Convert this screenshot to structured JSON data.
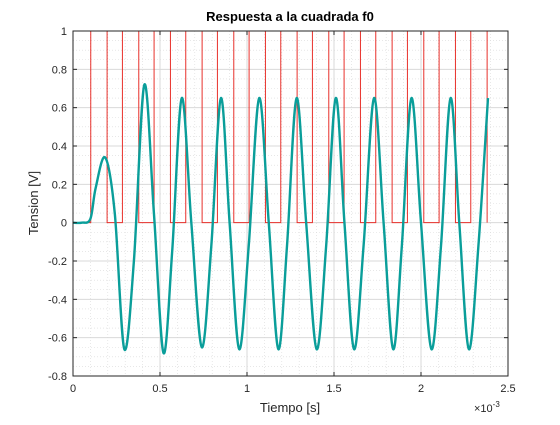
{
  "chart_data": {
    "type": "line",
    "title": "Respuesta a la cuadrada f0",
    "xlabel": "Tiempo [s]",
    "ylabel": "Tension [V]",
    "x_exponent_label": "×10",
    "x_exponent_power": "-3",
    "xlim": [
      0,
      0.0025
    ],
    "ylim": [
      -0.8,
      1
    ],
    "grid": true,
    "minor_grid": true,
    "x_ticks": [
      0,
      0.0005,
      0.001,
      0.0015,
      0.002,
      0.0025
    ],
    "x_tick_labels": [
      "0",
      "0.5",
      "1",
      "1.5",
      "2",
      "2.5"
    ],
    "y_ticks": [
      -0.8,
      -0.6,
      -0.4,
      -0.2,
      0,
      0.2,
      0.4,
      0.6,
      0.8,
      1
    ],
    "y_tick_labels": [
      "-0.8",
      "-0.6",
      "-0.4",
      "-0.2",
      "0",
      "0.2",
      "0.4",
      "0.6",
      "0.8",
      "1"
    ],
    "colors": {
      "square": "#e8312b",
      "response": "#0a9e9a",
      "grid": "#d9d9d9",
      "axis": "#262626"
    },
    "series": [
      {
        "role": "square",
        "style": "step",
        "x": [
          0,
          0.000102,
          0.000102,
          0.000196,
          0.000196,
          0.000284,
          0.000284,
          0.000378,
          0.000378,
          0.000466,
          0.000466,
          0.00056,
          0.00056,
          0.000648,
          0.000648,
          0.000742,
          0.000742,
          0.00083,
          0.00083,
          0.000924,
          0.000924,
          0.001012,
          0.001012,
          0.001106,
          0.001106,
          0.001194,
          0.001194,
          0.001288,
          0.001288,
          0.001376,
          0.001376,
          0.00147,
          0.00147,
          0.001558,
          0.001558,
          0.001652,
          0.001652,
          0.00174,
          0.00174,
          0.001834,
          0.001834,
          0.001922,
          0.001922,
          0.002016,
          0.002016,
          0.002104,
          0.002104,
          0.002198,
          0.002198,
          0.002286,
          0.002286,
          0.00238,
          0.00238
        ],
        "y": [
          0,
          0,
          1,
          1,
          0,
          0,
          1,
          1,
          0,
          0,
          1,
          1,
          0,
          0,
          1,
          1,
          0,
          0,
          1,
          1,
          0,
          0,
          1,
          1,
          0,
          0,
          1,
          1,
          0,
          0,
          1,
          1,
          0,
          0,
          1,
          1,
          0,
          0,
          1,
          1,
          0,
          0,
          1,
          1,
          0,
          0,
          1,
          1,
          0,
          0,
          1,
          1,
          0
        ]
      },
      {
        "role": "response",
        "style": "line",
        "x": [
          0,
          5e-05,
          0.0001,
          0.00013,
          0.000185,
          0.00024,
          0.000295,
          0.00035,
          0.00041,
          0.000465,
          0.00052,
          0.00057,
          0.000625,
          0.00068,
          0.00074,
          0.000795,
          0.00085,
          0.0009,
          0.000955,
          0.00101,
          0.00107,
          0.001125,
          0.00118,
          0.00123,
          0.001285,
          0.00134,
          0.0014,
          0.001455,
          0.00151,
          0.00156,
          0.001615,
          0.00167,
          0.00173,
          0.001785,
          0.00184,
          0.00189,
          0.001945,
          0.002,
          0.00206,
          0.002115,
          0.00217,
          0.00222,
          0.002275,
          0.00233,
          0.002385
        ],
        "y": [
          0,
          0,
          0.02,
          0.18,
          0.34,
          0.05,
          -0.66,
          -0.2,
          0.72,
          0.05,
          -0.68,
          -0.15,
          0.65,
          0.0,
          -0.65,
          -0.12,
          0.65,
          0.0,
          -0.66,
          -0.12,
          0.65,
          0.0,
          -0.66,
          -0.12,
          0.65,
          0.0,
          -0.66,
          -0.12,
          0.65,
          0.0,
          -0.66,
          -0.12,
          0.65,
          0.0,
          -0.66,
          -0.12,
          0.65,
          0.0,
          -0.66,
          -0.12,
          0.65,
          0.0,
          -0.66,
          -0.12,
          0.65
        ]
      }
    ]
  }
}
